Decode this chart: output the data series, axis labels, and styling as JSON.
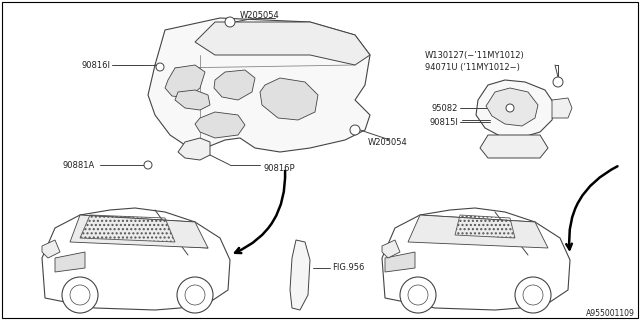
{
  "bg_color": "#ffffff",
  "border_color": "#000000",
  "line_color": "#444444",
  "text_color": "#222222",
  "diagram_id": "A955001109",
  "labels": {
    "W205054_top": "W205054",
    "W205054_bot": "W205054",
    "lbl_90816I": "90816I",
    "lbl_90816P": "90816P",
    "lbl_90881A": "90881A",
    "lbl_W130127": "W130127(−’11MY1012)",
    "lbl_94071U": "94071U (’11MY1012−)",
    "lbl_95082": "95082",
    "lbl_90815I": "90815I",
    "lbl_FIG956": "FIG.956"
  },
  "font_size": 6.0
}
